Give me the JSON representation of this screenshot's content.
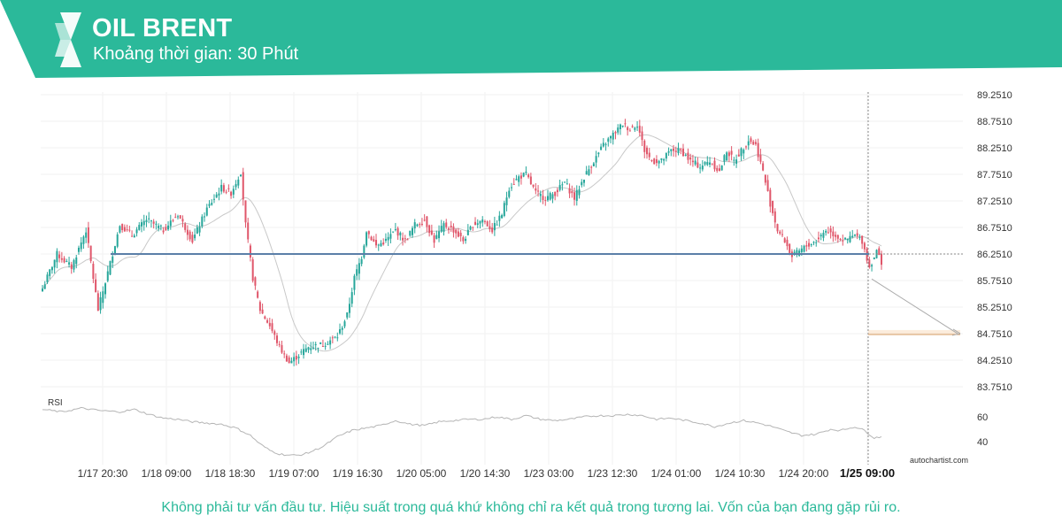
{
  "header": {
    "title": "OIL BRENT",
    "subtitle": "Khoảng thời gian: 30 Phút"
  },
  "colors": {
    "brand": "#2bb99a",
    "up_candle": "#26a69a",
    "down_candle": "#e0566a",
    "support_line": "#5b7fa8",
    "moving_average": "#c8c8c8",
    "forecast_zone": "#f5c89a"
  },
  "watermark": "autochartist.com",
  "disclaimer": "Không phải tư vấn đầu tư. Hiệu suất trong quá khứ không chỉ ra kết quả trong tương lai. Vốn của bạn đang gặp rủi ro.",
  "chart_data": {
    "type": "candlestick",
    "price_axis": {
      "ticks": [
        "89.2510",
        "88.7510",
        "88.2510",
        "87.7510",
        "87.2510",
        "86.7510",
        "86.2510",
        "85.7510",
        "85.2510",
        "84.7510",
        "84.2510",
        "83.7510"
      ],
      "range": [
        83.7,
        89.3
      ]
    },
    "time_axis": {
      "ticks": [
        "1/17 20:30",
        "1/18 09:00",
        "1/18 18:30",
        "1/19 07:00",
        "1/19 16:30",
        "1/20 05:00",
        "1/20 14:30",
        "1/23 03:00",
        "1/23 12:30",
        "1/24 01:00",
        "1/24 10:30",
        "1/24 20:00",
        "1/25 09:00"
      ],
      "highlighted": "1/25 09:00"
    },
    "support_level": 86.251,
    "current_price": 86.251,
    "forecast_level": 84.751,
    "price_path": [
      [
        0,
        85.6
      ],
      [
        6,
        86.25
      ],
      [
        12,
        86.0
      ],
      [
        18,
        86.7
      ],
      [
        23,
        85.2
      ],
      [
        27,
        85.9
      ],
      [
        32,
        86.8
      ],
      [
        37,
        86.6
      ],
      [
        43,
        86.9
      ],
      [
        50,
        86.7
      ],
      [
        56,
        87.0
      ],
      [
        62,
        86.5
      ],
      [
        68,
        87.1
      ],
      [
        74,
        87.5
      ],
      [
        78,
        87.4
      ],
      [
        82,
        87.8
      ],
      [
        84,
        86.8
      ],
      [
        87,
        85.8
      ],
      [
        90,
        85.2
      ],
      [
        94,
        84.9
      ],
      [
        98,
        84.5
      ],
      [
        102,
        84.2
      ],
      [
        106,
        84.35
      ],
      [
        110,
        84.5
      ],
      [
        116,
        84.55
      ],
      [
        122,
        84.7
      ],
      [
        126,
        85.1
      ],
      [
        129,
        85.8
      ],
      [
        132,
        86.2
      ],
      [
        134,
        86.7
      ],
      [
        138,
        86.4
      ],
      [
        142,
        86.5
      ],
      [
        146,
        86.7
      ],
      [
        150,
        86.5
      ],
      [
        154,
        86.8
      ],
      [
        158,
        86.9
      ],
      [
        162,
        86.5
      ],
      [
        166,
        86.8
      ],
      [
        170,
        86.7
      ],
      [
        174,
        86.5
      ],
      [
        178,
        86.8
      ],
      [
        182,
        86.9
      ],
      [
        186,
        86.7
      ],
      [
        190,
        87.0
      ],
      [
        193,
        87.5
      ],
      [
        197,
        87.7
      ],
      [
        200,
        87.75
      ],
      [
        204,
        87.4
      ],
      [
        208,
        87.3
      ],
      [
        212,
        87.4
      ],
      [
        216,
        87.6
      ],
      [
        220,
        87.3
      ],
      [
        224,
        87.7
      ],
      [
        228,
        88.0
      ],
      [
        232,
        88.3
      ],
      [
        236,
        88.5
      ],
      [
        240,
        88.7
      ],
      [
        243,
        88.6
      ],
      [
        246,
        88.7
      ],
      [
        249,
        88.2
      ],
      [
        252,
        88.0
      ],
      [
        256,
        88.0
      ],
      [
        260,
        88.2
      ],
      [
        264,
        88.2
      ],
      [
        268,
        88.0
      ],
      [
        272,
        87.9
      ],
      [
        276,
        88.0
      ],
      [
        280,
        87.8
      ],
      [
        283,
        88.2
      ],
      [
        286,
        88.0
      ],
      [
        289,
        88.2
      ],
      [
        292,
        88.4
      ],
      [
        295,
        88.3
      ],
      [
        298,
        87.8
      ],
      [
        301,
        87.2
      ],
      [
        304,
        86.7
      ],
      [
        307,
        86.5
      ],
      [
        310,
        86.2
      ],
      [
        313,
        86.3
      ],
      [
        316,
        86.4
      ],
      [
        320,
        86.5
      ],
      [
        324,
        86.7
      ],
      [
        328,
        86.6
      ],
      [
        332,
        86.5
      ],
      [
        336,
        86.6
      ],
      [
        339,
        86.5
      ],
      [
        342,
        86.0
      ],
      [
        345,
        86.3
      ],
      [
        347,
        86.1
      ]
    ],
    "rsi": {
      "label": "RSI",
      "ticks": [
        "60",
        "40"
      ],
      "range": [
        25,
        75
      ],
      "path": [
        [
          0,
          66
        ],
        [
          8,
          64
        ],
        [
          16,
          67
        ],
        [
          24,
          65
        ],
        [
          32,
          64
        ],
        [
          38,
          66
        ],
        [
          44,
          62
        ],
        [
          50,
          59
        ],
        [
          56,
          58
        ],
        [
          62,
          56
        ],
        [
          68,
          55
        ],
        [
          74,
          54
        ],
        [
          80,
          51
        ],
        [
          86,
          45
        ],
        [
          90,
          38
        ],
        [
          94,
          33
        ],
        [
          98,
          30
        ],
        [
          102,
          29
        ],
        [
          106,
          29
        ],
        [
          110,
          31
        ],
        [
          116,
          36
        ],
        [
          122,
          44
        ],
        [
          128,
          49
        ],
        [
          134,
          51
        ],
        [
          140,
          53
        ],
        [
          146,
          57
        ],
        [
          152,
          54
        ],
        [
          158,
          53
        ],
        [
          164,
          56
        ],
        [
          170,
          57
        ],
        [
          176,
          58
        ],
        [
          182,
          58
        ],
        [
          188,
          60
        ],
        [
          194,
          58
        ],
        [
          200,
          61
        ],
        [
          206,
          58
        ],
        [
          212,
          57
        ],
        [
          218,
          58
        ],
        [
          224,
          60
        ],
        [
          230,
          61
        ],
        [
          236,
          61
        ],
        [
          242,
          62
        ],
        [
          248,
          61
        ],
        [
          254,
          58
        ],
        [
          260,
          59
        ],
        [
          266,
          57
        ],
        [
          272,
          55
        ],
        [
          278,
          52
        ],
        [
          284,
          55
        ],
        [
          290,
          57
        ],
        [
          296,
          55
        ],
        [
          302,
          52
        ],
        [
          308,
          48
        ],
        [
          314,
          45
        ],
        [
          320,
          46
        ],
        [
          326,
          50
        ],
        [
          330,
          49
        ],
        [
          336,
          52
        ],
        [
          340,
          49
        ],
        [
          344,
          43
        ],
        [
          347,
          44
        ]
      ]
    }
  }
}
